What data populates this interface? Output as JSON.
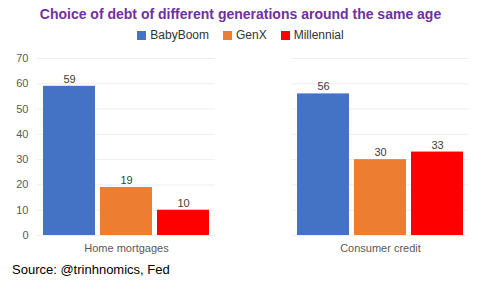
{
  "chart_data": {
    "type": "bar",
    "title": "Choice of debt of different generations around the same age",
    "categories": [
      "Home mortgages",
      "Consumer credit"
    ],
    "series": [
      {
        "name": "BabyBoom",
        "color": "#4472C4",
        "values": [
          59,
          56
        ]
      },
      {
        "name": "GenX",
        "color": "#ED7D31",
        "values": [
          19,
          30
        ]
      },
      {
        "name": "Millennial",
        "color": "#FF0000",
        "values": [
          10,
          33
        ]
      }
    ],
    "ylim": [
      0,
      70
    ],
    "yticks": [
      0,
      10,
      20,
      30,
      40,
      50,
      60,
      70
    ],
    "grid": true,
    "legend": "top",
    "data_labels": true,
    "annotations": [
      "Source: @trinhnomics, Fed"
    ]
  }
}
